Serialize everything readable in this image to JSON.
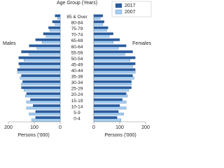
{
  "chart_data": {
    "type": "bar",
    "orientation": "horizontal",
    "layout": "pyramid",
    "title": "Age Group (Years)",
    "panel_labels": [
      "Males",
      "Females"
    ],
    "xlabel": "Persons ('000)",
    "categories": [
      "0-4",
      "5-9",
      "10-14",
      "15-19",
      "20-24",
      "25-29",
      "30-34",
      "35-39",
      "40-44",
      "45-49",
      "50-54",
      "55-59",
      "60-64",
      "65-69",
      "70-74",
      "75-79",
      "80-84",
      "85 & Over"
    ],
    "xlim": [
      0,
      200
    ],
    "xticks": [
      0,
      100,
      200
    ],
    "legend": "upper right",
    "series": [
      {
        "name": "2017",
        "color": "#2b5c9c",
        "males": [
          95,
          95,
          105,
          115,
          130,
          150,
          145,
          150,
          165,
          160,
          160,
          150,
          120,
          95,
          65,
          45,
          30,
          20
        ],
        "females": [
          90,
          95,
          100,
          110,
          125,
          145,
          145,
          150,
          160,
          160,
          160,
          150,
          125,
          100,
          75,
          55,
          40,
          35
        ]
      },
      {
        "name": "2007",
        "color": "#a6cff2",
        "males": [
          110,
          120,
          130,
          130,
          135,
          140,
          150,
          155,
          165,
          155,
          140,
          120,
          90,
          70,
          55,
          40,
          20,
          10
        ],
        "females": [
          105,
          115,
          125,
          125,
          130,
          135,
          145,
          155,
          160,
          150,
          140,
          120,
          95,
          75,
          60,
          50,
          35,
          25
        ]
      }
    ]
  }
}
